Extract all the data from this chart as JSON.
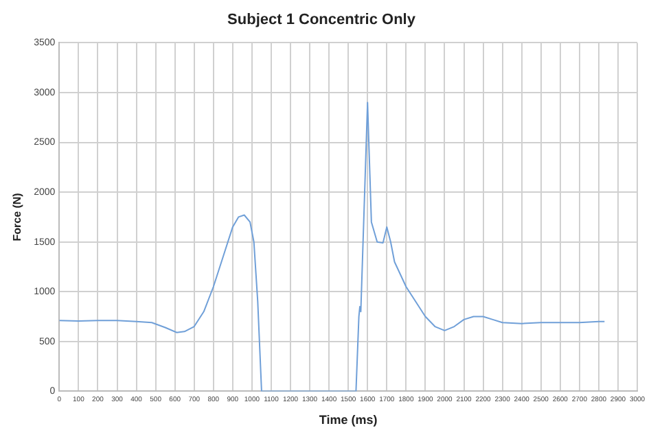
{
  "chart_data": {
    "type": "line",
    "title": "Subject 1 Concentric Only",
    "xlabel": "Time (ms)",
    "ylabel": "Force (N)",
    "x": [
      0,
      100,
      200,
      300,
      400,
      480,
      550,
      610,
      650,
      700,
      750,
      800,
      850,
      900,
      930,
      960,
      990,
      1010,
      1030,
      1050,
      1100,
      1300,
      1540,
      1555,
      1560,
      1565,
      1600,
      1620,
      1650,
      1680,
      1700,
      1720,
      1740,
      1800,
      1850,
      1900,
      1950,
      2000,
      2050,
      2100,
      2150,
      2200,
      2250,
      2300,
      2400,
      2500,
      2600,
      2700,
      2800,
      2830
    ],
    "series": [
      {
        "color": "#6f9fd8",
        "values": [
          710,
          705,
          710,
          710,
          700,
          690,
          640,
          590,
          600,
          650,
          800,
          1050,
          1350,
          1650,
          1750,
          1770,
          1700,
          1500,
          900,
          0,
          0,
          0,
          0,
          750,
          850,
          800,
          2900,
          1700,
          1500,
          1490,
          1650,
          1500,
          1300,
          1050,
          900,
          750,
          650,
          610,
          650,
          720,
          750,
          750,
          720,
          690,
          680,
          690,
          690,
          690,
          700,
          700
        ]
      }
    ],
    "xlim": [
      0,
      3000
    ],
    "xticks": [
      0,
      100,
      200,
      300,
      400,
      500,
      600,
      700,
      800,
      900,
      1000,
      1100,
      1200,
      1300,
      1400,
      1500,
      1600,
      1700,
      1800,
      1900,
      2000,
      2100,
      2200,
      2300,
      2400,
      2500,
      2600,
      2700,
      2800,
      2900,
      3000
    ],
    "ylim": [
      0,
      3500
    ],
    "yticks": [
      0,
      500,
      1000,
      1500,
      2000,
      2500,
      3000,
      3500
    ],
    "grid": true,
    "legend": false,
    "marker": "none",
    "line_style": "solid"
  }
}
